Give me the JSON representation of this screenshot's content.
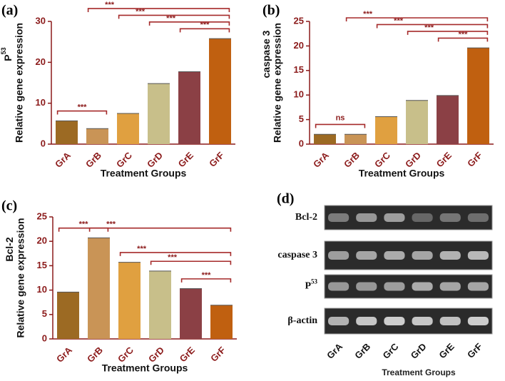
{
  "chart_data": [
    {
      "type": "bar",
      "label": "(a)",
      "gene": {
        "base": "P",
        "sup": "53"
      },
      "ylabel": "Relative gene expression",
      "xlabel": "Treatment Groups",
      "categories": [
        "GrA",
        "GrB",
        "GrC",
        "GrD",
        "GrE",
        "GrF"
      ],
      "values": [
        5.7,
        3.8,
        7.5,
        14.8,
        17.7,
        25.8
      ],
      "colors": [
        "#9c6a23",
        "#c99456",
        "#e0a040",
        "#c8bf8a",
        "#8b4045",
        "#c06010"
      ],
      "ylim": [
        0,
        30
      ],
      "yticks": [
        0,
        10,
        20,
        30
      ],
      "annotations": [
        {
          "label": "***",
          "from": 0,
          "to": 1
        },
        {
          "label": "***",
          "from": 4,
          "to": 5
        },
        {
          "label": "***",
          "from": 3,
          "to": 5
        },
        {
          "label": "***",
          "from": 2,
          "to": 5
        },
        {
          "label": "***",
          "from": 1,
          "to": 5
        }
      ]
    },
    {
      "type": "bar",
      "label": "(b)",
      "gene": {
        "base": "caspase 3"
      },
      "ylabel": "Relative gene expression",
      "xlabel": "Treatment Groups",
      "categories": [
        "GrA",
        "GrB",
        "GrC",
        "GrD",
        "GrE",
        "GrF"
      ],
      "values": [
        2.0,
        2.0,
        5.6,
        8.9,
        9.9,
        19.6
      ],
      "colors": [
        "#9c6a23",
        "#c99456",
        "#e0a040",
        "#c8bf8a",
        "#8b4045",
        "#c06010"
      ],
      "ylim": [
        0,
        25
      ],
      "yticks": [
        0,
        5,
        10,
        15,
        20,
        25
      ],
      "annotations": [
        {
          "label": "ns",
          "from": 0,
          "to": 1
        },
        {
          "label": "***",
          "from": 4,
          "to": 5
        },
        {
          "label": "***",
          "from": 3,
          "to": 5
        },
        {
          "label": "***",
          "from": 2,
          "to": 5
        },
        {
          "label": "***",
          "from": 1,
          "to": 5
        }
      ]
    },
    {
      "type": "bar",
      "label": "(c)",
      "gene": {
        "base": "Bcl-2"
      },
      "ylabel": "Relative gene expression",
      "xlabel": "Treatment Groups",
      "categories": [
        "GrA",
        "GrB",
        "GrC",
        "GrD",
        "GrE",
        "GrF"
      ],
      "values": [
        9.6,
        20.7,
        15.7,
        13.9,
        10.3,
        6.9
      ],
      "colors": [
        "#9c6a23",
        "#c99456",
        "#e0a040",
        "#c8bf8a",
        "#8b4045",
        "#c06010"
      ],
      "ylim": [
        0,
        25
      ],
      "yticks": [
        0,
        5,
        10,
        15,
        20,
        25
      ],
      "annotations": [
        {
          "label": "***",
          "from": 0,
          "to": 1
        },
        {
          "label": "***",
          "from": 4,
          "to": 5
        },
        {
          "label": "***",
          "from": 3,
          "to": 5
        },
        {
          "label": "***",
          "from": 2,
          "to": 5
        },
        {
          "label": "***",
          "from": 1,
          "to": 5
        }
      ]
    }
  ],
  "gel": {
    "label": "(d)",
    "rows": [
      {
        "base": "Bcl-2"
      },
      {
        "base": "caspase 3"
      },
      {
        "base": "P",
        "sup": "53"
      },
      {
        "base": "β-actin"
      }
    ],
    "lanes": [
      "GrA",
      "GrB",
      "GrC",
      "GrD",
      "GrE",
      "GrF"
    ],
    "xlabel": "Treatment Groups"
  }
}
